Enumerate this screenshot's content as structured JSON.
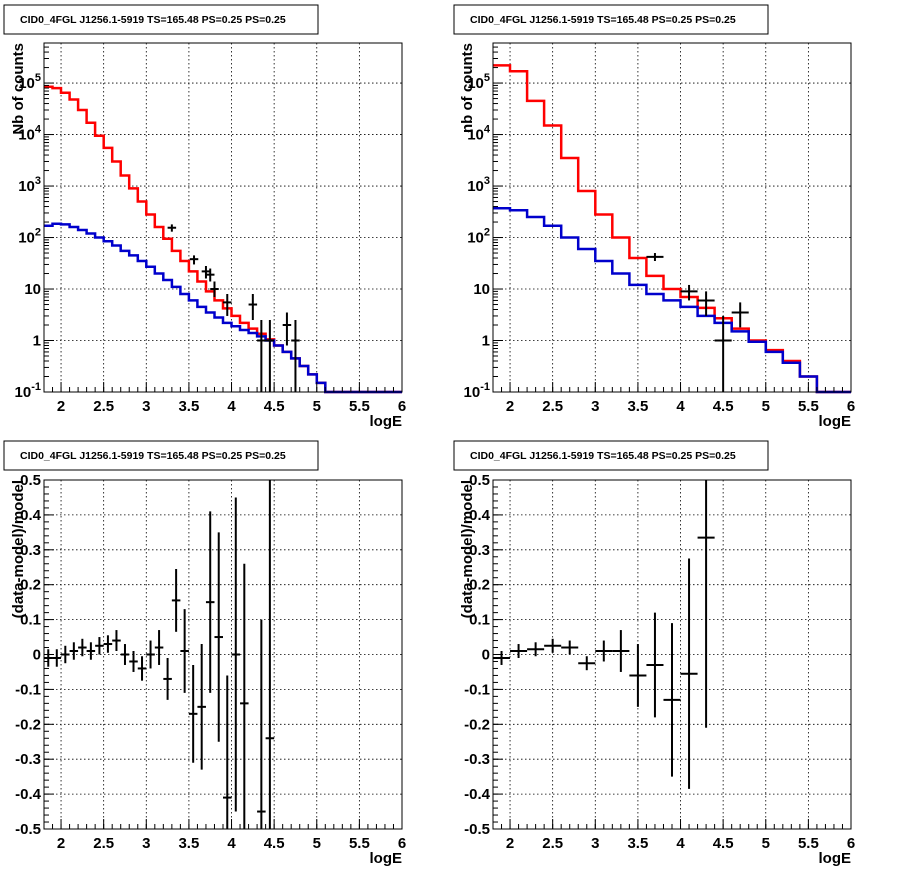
{
  "chart_data": [
    {
      "type": "line",
      "title": "CID0_4FGL J1256.1-5919 TS=165.48 PS=0.25 PS=0.25",
      "xlabel": "logE",
      "ylabel": "Nb of counts",
      "log_y": true,
      "xlim": [
        1.8,
        6.0
      ],
      "ylim": [
        0.1,
        600000
      ],
      "grid": true,
      "x_ticks": [
        "2",
        "2.5",
        "3",
        "3.5",
        "4",
        "4.5",
        "5",
        "5.5",
        "6"
      ],
      "y_ticks": [
        "10^-1",
        "1",
        "10",
        "10^2",
        "10^3",
        "10^4",
        "10^5"
      ],
      "bin_edges": [
        1.8,
        1.9,
        2.0,
        2.1,
        2.2,
        2.3,
        2.4,
        2.5,
        2.6,
        2.7,
        2.8,
        2.9,
        3.0,
        3.1,
        3.2,
        3.3,
        3.4,
        3.5,
        3.6,
        3.7,
        3.8,
        3.9,
        4.0,
        4.1,
        4.2,
        4.3,
        4.4,
        4.5,
        4.6,
        4.7,
        4.8,
        4.9,
        5.0,
        5.1,
        5.2,
        5.3,
        5.4,
        5.5,
        5.6,
        5.7,
        5.8,
        5.9,
        6.0
      ],
      "series": [
        {
          "color": "#ff0000",
          "step_values": [
            85000,
            80000,
            65000,
            48000,
            30000,
            17000,
            9500,
            5500,
            3000,
            1600,
            900,
            500,
            280,
            160,
            95,
            55,
            35,
            22,
            14,
            9,
            6,
            4.2,
            3.0,
            2.2,
            1.7,
            1.35,
            1.05,
            0.8,
            0.6,
            0.45,
            0.32,
            0.22,
            0.15,
            0.1,
            0.1,
            0.1,
            0.1,
            0.1,
            0.1,
            0.1,
            0.1,
            0.1
          ]
        },
        {
          "color": "#0000cc",
          "step_values": [
            170,
            185,
            180,
            160,
            140,
            120,
            100,
            85,
            70,
            55,
            45,
            35,
            27,
            20,
            15,
            11,
            8,
            6,
            4.5,
            3.5,
            2.8,
            2.2,
            1.9,
            1.6,
            1.4,
            1.2,
            1.0,
            0.8,
            0.6,
            0.45,
            0.32,
            0.22,
            0.15,
            0.1,
            0.1,
            0.1,
            0.1,
            0.1,
            0.1,
            0.1,
            0.1,
            0.1
          ]
        }
      ],
      "data_points": [
        {
          "x": 3.3,
          "y": 155,
          "ylo": 130,
          "yhi": 180
        },
        {
          "x": 3.56,
          "y": 38,
          "ylo": 30,
          "yhi": 45
        },
        {
          "x": 3.7,
          "y": 22,
          "ylo": 16,
          "yhi": 28
        },
        {
          "x": 3.75,
          "y": 19,
          "ylo": 14,
          "yhi": 25
        },
        {
          "x": 3.8,
          "y": 10,
          "ylo": 7,
          "yhi": 14
        },
        {
          "x": 3.95,
          "y": 5.5,
          "ylo": 3,
          "yhi": 8
        },
        {
          "x": 4.25,
          "y": 5,
          "ylo": 2.5,
          "yhi": 8
        },
        {
          "x": 4.35,
          "y": 1,
          "ylo": 0.1,
          "yhi": 2.5
        },
        {
          "x": 4.45,
          "y": 1,
          "ylo": 0.1,
          "yhi": 2.5
        },
        {
          "x": 4.65,
          "y": 2,
          "ylo": 0.8,
          "yhi": 3.5
        },
        {
          "x": 4.75,
          "y": 1,
          "ylo": 0.1,
          "yhi": 2.5
        }
      ]
    },
    {
      "type": "line",
      "title": "CID0_4FGL J1256.1-5919 TS=165.48 PS=0.25 PS=0.25",
      "xlabel": "logE",
      "ylabel": "nb of counts",
      "log_y": true,
      "xlim": [
        1.8,
        6.0
      ],
      "ylim": [
        0.1,
        600000
      ],
      "grid": true,
      "x_ticks": [
        "2",
        "2.5",
        "3",
        "3.5",
        "4",
        "4.5",
        "5",
        "5.5",
        "6"
      ],
      "y_ticks": [
        "10^-1",
        "1",
        "10",
        "10^2",
        "10^3",
        "10^4",
        "10^5"
      ],
      "bin_edges": [
        1.8,
        2.0,
        2.2,
        2.4,
        2.6,
        2.8,
        3.0,
        3.2,
        3.4,
        3.6,
        3.8,
        4.0,
        4.2,
        4.4,
        4.6,
        4.8,
        5.0,
        5.2,
        5.4,
        5.6,
        5.8,
        6.0
      ],
      "series": [
        {
          "color": "#ff0000",
          "step_values": [
            220000,
            170000,
            45000,
            15000,
            3500,
            800,
            280,
            100,
            40,
            18,
            10,
            7,
            4.3,
            2.7,
            1.7,
            1.0,
            0.65,
            0.4,
            0.2,
            0.1,
            0.1
          ]
        },
        {
          "color": "#0000cc",
          "step_values": [
            370,
            340,
            250,
            170,
            100,
            60,
            35,
            20,
            12,
            8,
            6,
            4.5,
            3,
            2.2,
            1.5,
            0.95,
            0.6,
            0.37,
            0.2,
            0.1,
            0.1
          ]
        }
      ],
      "data_points": [
        {
          "x": 3.7,
          "y": 42,
          "ylo": 35,
          "yhi": 50
        },
        {
          "x": 4.1,
          "y": 9,
          "ylo": 6,
          "yhi": 12
        },
        {
          "x": 4.3,
          "y": 6,
          "ylo": 3,
          "yhi": 9
        },
        {
          "x": 4.5,
          "y": 1,
          "ylo": 0.1,
          "yhi": 3
        },
        {
          "x": 4.7,
          "y": 3.5,
          "ylo": 1.8,
          "yhi": 5.5
        }
      ]
    },
    {
      "type": "scatter",
      "title": "CID0_4FGL J1256.1-5919 TS=165.48 PS=0.25 PS=0.25",
      "xlabel": "logE",
      "ylabel": "(data-model)/model",
      "xlim": [
        1.8,
        6.0
      ],
      "ylim": [
        -0.5,
        0.5
      ],
      "grid": true,
      "x_ticks": [
        "2",
        "2.5",
        "3",
        "3.5",
        "4",
        "4.5",
        "5",
        "5.5",
        "6"
      ],
      "y_ticks": [
        "-0.5",
        "-0.4",
        "-0.3",
        "-0.2",
        "-0.1",
        "0",
        "0.1",
        "0.2",
        "0.3",
        "0.4",
        "0.5"
      ],
      "points": [
        {
          "x": 1.85,
          "y": -0.01,
          "err": 0.025,
          "xerr": 0.05
        },
        {
          "x": 1.95,
          "y": -0.01,
          "err": 0.025,
          "xerr": 0.05
        },
        {
          "x": 2.05,
          "y": 0.0,
          "err": 0.025,
          "xerr": 0.05
        },
        {
          "x": 2.15,
          "y": 0.01,
          "err": 0.025,
          "xerr": 0.05
        },
        {
          "x": 2.25,
          "y": 0.02,
          "err": 0.025,
          "xerr": 0.05
        },
        {
          "x": 2.35,
          "y": 0.01,
          "err": 0.025,
          "xerr": 0.05
        },
        {
          "x": 2.45,
          "y": 0.025,
          "err": 0.025,
          "xerr": 0.05
        },
        {
          "x": 2.55,
          "y": 0.03,
          "err": 0.025,
          "xerr": 0.05
        },
        {
          "x": 2.65,
          "y": 0.04,
          "err": 0.03,
          "xerr": 0.05
        },
        {
          "x": 2.75,
          "y": 0.0,
          "err": 0.03,
          "xerr": 0.05
        },
        {
          "x": 2.85,
          "y": -0.02,
          "err": 0.03,
          "xerr": 0.05
        },
        {
          "x": 2.95,
          "y": -0.04,
          "err": 0.035,
          "xerr": 0.05
        },
        {
          "x": 3.05,
          "y": 0.0,
          "err": 0.04,
          "xerr": 0.05
        },
        {
          "x": 3.15,
          "y": 0.02,
          "err": 0.05,
          "xerr": 0.05
        },
        {
          "x": 3.25,
          "y": -0.07,
          "err": 0.06,
          "xerr": 0.05
        },
        {
          "x": 3.35,
          "y": 0.155,
          "err": 0.09,
          "xerr": 0.05
        },
        {
          "x": 3.45,
          "y": 0.01,
          "err": 0.12,
          "xerr": 0.05
        },
        {
          "x": 3.55,
          "y": -0.17,
          "err": 0.14,
          "xerr": 0.05
        },
        {
          "x": 3.65,
          "y": -0.15,
          "err": 0.18,
          "xerr": 0.05
        },
        {
          "x": 3.75,
          "y": 0.15,
          "err": 0.26,
          "xerr": 0.05
        },
        {
          "x": 3.85,
          "y": 0.05,
          "err": 0.3,
          "xerr": 0.05
        },
        {
          "x": 3.95,
          "y": -0.41,
          "err": 0.35,
          "xerr": 0.05
        },
        {
          "x": 4.05,
          "y": 0.0,
          "err": 0.45,
          "xerr": 0.05
        },
        {
          "x": 4.15,
          "y": -0.14,
          "err": 0.4,
          "xerr": 0.05
        },
        {
          "x": 4.35,
          "y": -0.45,
          "err": 0.55,
          "xerr": 0.05
        },
        {
          "x": 4.45,
          "y": -0.24,
          "err": 0.75,
          "xerr": 0.05
        }
      ]
    },
    {
      "type": "scatter",
      "title": "CID0_4FGL J1256.1-5919 TS=165.48 PS=0.25 PS=0.25",
      "xlabel": "logE",
      "ylabel": "(data-model)/model",
      "xlim": [
        1.8,
        6.0
      ],
      "ylim": [
        -0.5,
        0.5
      ],
      "grid": true,
      "x_ticks": [
        "2",
        "2.5",
        "3",
        "3.5",
        "4",
        "4.5",
        "5",
        "5.5",
        "6"
      ],
      "y_ticks": [
        "-0.5",
        "-0.4",
        "-0.3",
        "-0.2",
        "-0.1",
        "0",
        "0.1",
        "0.2",
        "0.3",
        "0.4",
        "0.5"
      ],
      "points": [
        {
          "x": 1.9,
          "y": -0.01,
          "err": 0.02,
          "xerr": 0.1
        },
        {
          "x": 2.1,
          "y": 0.01,
          "err": 0.02,
          "xerr": 0.1
        },
        {
          "x": 2.3,
          "y": 0.015,
          "err": 0.02,
          "xerr": 0.1
        },
        {
          "x": 2.5,
          "y": 0.025,
          "err": 0.02,
          "xerr": 0.1
        },
        {
          "x": 2.7,
          "y": 0.02,
          "err": 0.02,
          "xerr": 0.1
        },
        {
          "x": 2.9,
          "y": -0.025,
          "err": 0.02,
          "xerr": 0.1
        },
        {
          "x": 3.1,
          "y": 0.01,
          "err": 0.03,
          "xerr": 0.1
        },
        {
          "x": 3.3,
          "y": 0.01,
          "err": 0.06,
          "xerr": 0.1
        },
        {
          "x": 3.5,
          "y": -0.06,
          "err": 0.09,
          "xerr": 0.1
        },
        {
          "x": 3.7,
          "y": -0.03,
          "err": 0.15,
          "xerr": 0.1
        },
        {
          "x": 3.9,
          "y": -0.13,
          "err": 0.22,
          "xerr": 0.1
        },
        {
          "x": 4.1,
          "y": -0.055,
          "err": 0.33,
          "xerr": 0.1
        },
        {
          "x": 4.3,
          "y": 0.335,
          "err": 0.545,
          "xerr": 0.1
        }
      ]
    }
  ]
}
